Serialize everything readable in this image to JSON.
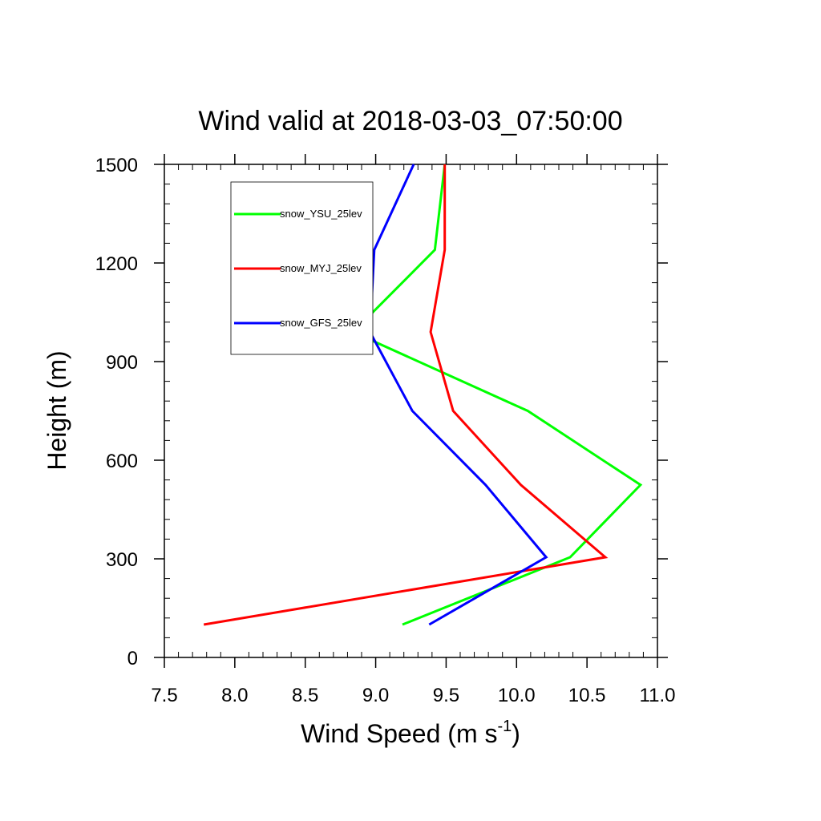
{
  "chart_data": {
    "type": "line",
    "title": "Wind valid at 2018-03-03_07:50:00",
    "xlabel": "Wind Speed (m s",
    "xlabel_sup": "-1",
    "xlabel_close": ")",
    "ylabel": "Height (m)",
    "xlim": [
      7.5,
      11.0
    ],
    "ylim": [
      0,
      1500
    ],
    "xticks": [
      7.5,
      8.0,
      8.5,
      9.0,
      9.5,
      10.0,
      10.5,
      11.0
    ],
    "xtick_labels": [
      "7.5",
      "8.0",
      "8.5",
      "9.0",
      "9.5",
      "10.0",
      "10.5",
      "11.0"
    ],
    "yticks": [
      0,
      300,
      600,
      900,
      1200,
      1500
    ],
    "ytick_labels": [
      "0",
      "300",
      "600",
      "900",
      "1200",
      "1500"
    ],
    "grid": false,
    "legend_position": "top-left",
    "series": [
      {
        "name": "snow_YSU_25lev",
        "color": "#00ff00",
        "x": [
          9.19,
          10.38,
          10.88,
          10.08,
          8.84,
          9.42,
          9.49
        ],
        "y": [
          100,
          305,
          525,
          750,
          990,
          1240,
          1500
        ]
      },
      {
        "name": "snow_MYJ_25lev",
        "color": "#ff0000",
        "x": [
          7.78,
          10.63,
          10.03,
          9.55,
          9.39,
          9.49,
          9.49
        ],
        "y": [
          100,
          305,
          525,
          750,
          990,
          1240,
          1500
        ]
      },
      {
        "name": "snow_GFS_25lev",
        "color": "#0000ff",
        "x": [
          9.38,
          10.21,
          9.78,
          9.26,
          8.96,
          8.99,
          9.27
        ],
        "y": [
          100,
          305,
          525,
          750,
          990,
          1240,
          1500
        ]
      }
    ]
  }
}
